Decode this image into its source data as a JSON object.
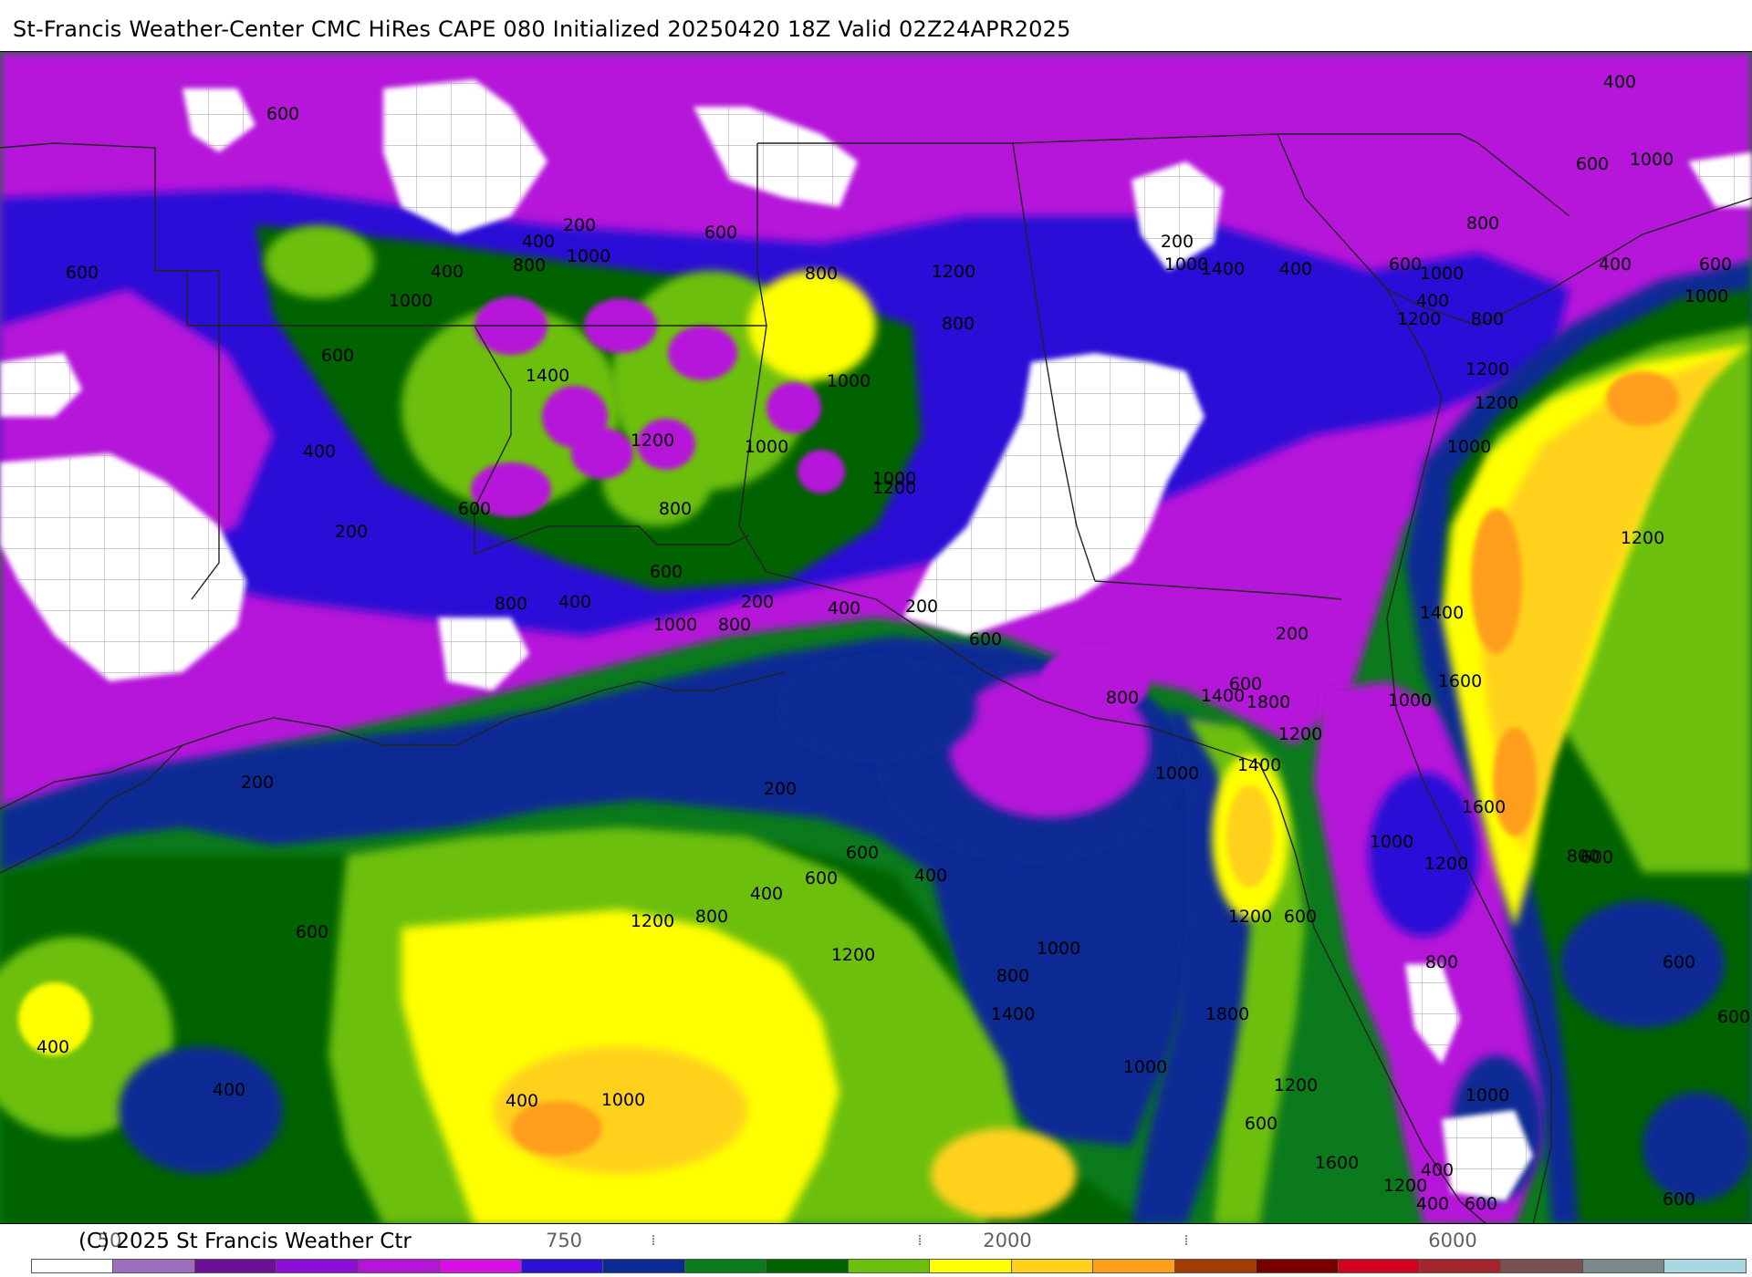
{
  "header": {
    "title": "St-Francis Weather-Center CMC HiRes CAPE  080 Initialized 20250420 18Z Valid 02Z24APR2025"
  },
  "footer": {
    "copyright": "(C) 2025 St Francis Weather Ctr"
  },
  "colorbar": {
    "tick_labels": [
      {
        "text": "50"
      },
      {
        "text": "750"
      },
      {
        "text": "2000"
      },
      {
        "text": "6000"
      }
    ],
    "colors": [
      "#ffffff",
      "#9b6fbd",
      "#6a1196",
      "#8b0fd4",
      "#b514d9",
      "#d70fe6",
      "#2b10d6",
      "#0b2b94",
      "#0b7a1c",
      "#006400",
      "#6cbf0c",
      "#ffff00",
      "#ffd11a",
      "#ff9e1a",
      "#a43c06",
      "#7a0000",
      "#d3021d",
      "#a4262c",
      "#7a5050",
      "#7a8a8c",
      "#a8d8e0"
    ]
  },
  "map": {
    "colors": {
      "white": "#ffffff",
      "lightpurple": "#9b6fbd",
      "darkpurple": "#6a1196",
      "magenta": "#b514d9",
      "violet": "#8b0fd4",
      "blue": "#2b10d6",
      "navy": "#0b2b94",
      "darkgreen": "#0b7a1c",
      "green": "#006400",
      "lime": "#6cbf0c",
      "yellow": "#ffff00",
      "gold": "#ffd11a",
      "orange": "#ff9e1a",
      "border": "#222222",
      "county": "#9a9a9a"
    },
    "contour_labels": [
      "600",
      "600",
      "400",
      "200",
      "800",
      "1000",
      "600",
      "800",
      "1000",
      "600",
      "400",
      "1200",
      "800",
      "1400",
      "1200",
      "1000",
      "1000",
      "1200",
      "400",
      "1000",
      "800",
      "600",
      "200",
      "800",
      "400",
      "600",
      "1000",
      "800",
      "200",
      "400",
      "200",
      "600",
      "800",
      "600",
      "200",
      "400",
      "1000",
      "800",
      "1200",
      "200",
      "1000",
      "400",
      "600",
      "800",
      "400",
      "600",
      "1000",
      "400",
      "600",
      "1000",
      "1400",
      "1200",
      "1200",
      "1000",
      "1200",
      "1400",
      "1600",
      "1000",
      "1400",
      "1800",
      "1400",
      "1200",
      "1000",
      "600",
      "600",
      "600",
      "1600",
      "1000",
      "1200",
      "800",
      "1200",
      "1000",
      "600",
      "400",
      "1200",
      "1600",
      "600",
      "400",
      "600",
      "800",
      "1200",
      "600",
      "1800",
      "1000",
      "800",
      "1000",
      "1200",
      "600",
      "800",
      "400",
      "200",
      "600",
      "400",
      "1400",
      "1200",
      "1000",
      "400",
      "600",
      "400",
      "400",
      "200"
    ]
  }
}
